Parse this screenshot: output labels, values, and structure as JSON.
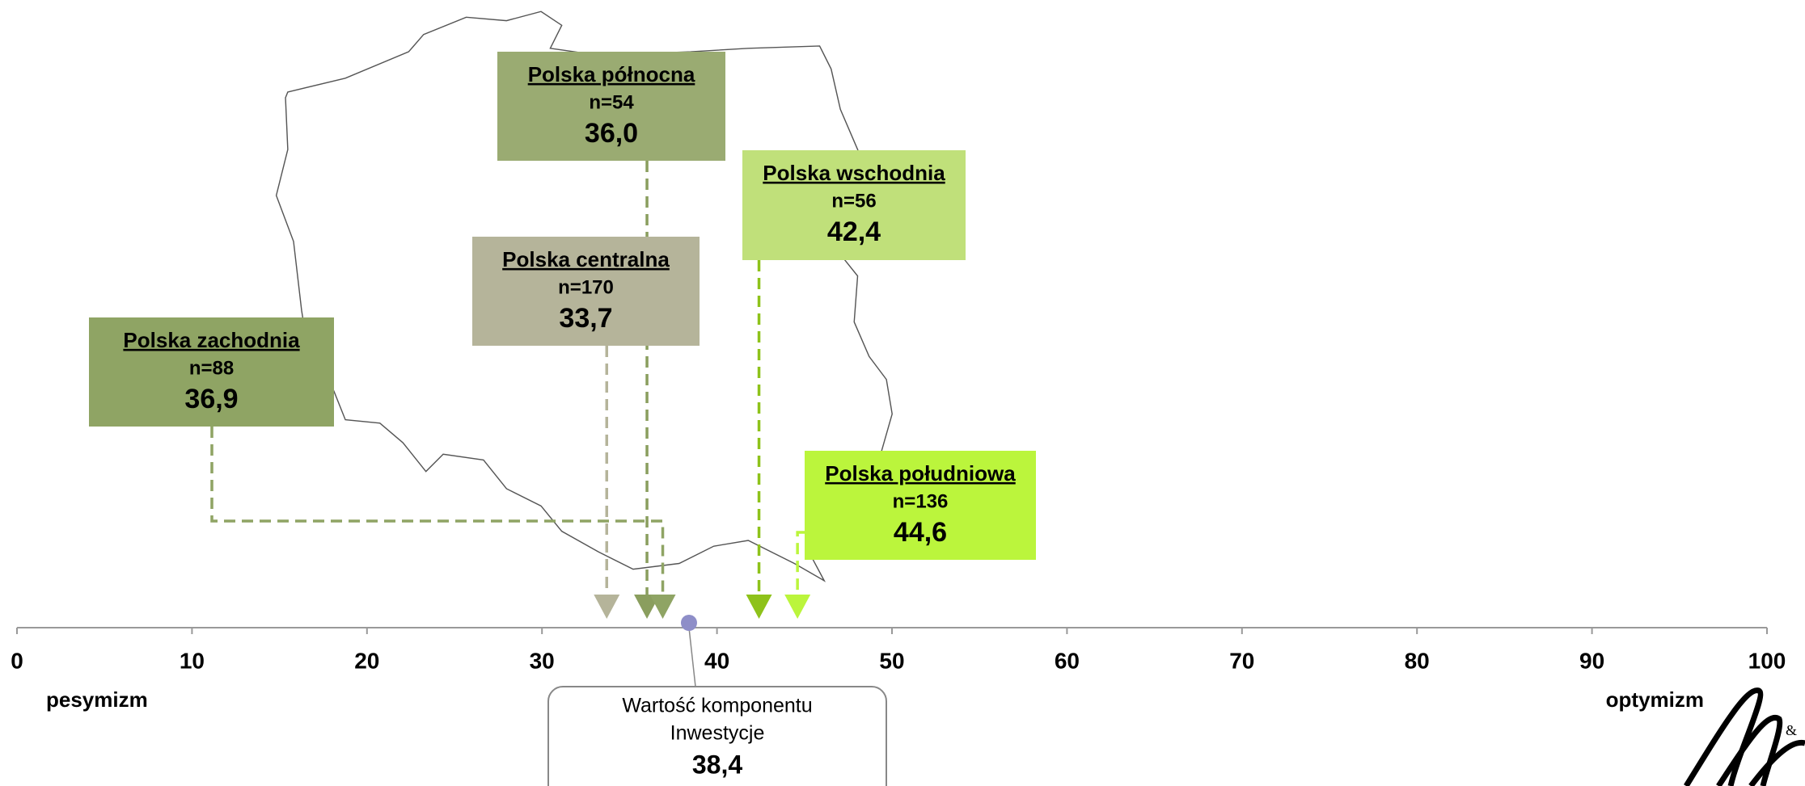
{
  "chart_data": {
    "type": "marker-scale",
    "xlim": [
      0,
      100
    ],
    "xticks": [
      0,
      10,
      20,
      30,
      40,
      50,
      60,
      70,
      80,
      90,
      100
    ],
    "left_label": "pesymizm",
    "right_label": "optymizm",
    "regions": [
      {
        "name": "Polska północna",
        "n": "n=54",
        "value": 36.0,
        "value_label": "36,0",
        "color": "#9aab72",
        "marker_color": "#8a9e5e"
      },
      {
        "name": "Polska wschodnia",
        "n": "n=56",
        "value": 42.4,
        "value_label": "42,4",
        "color": "#c0e07a",
        "marker_color": "#8ec21a"
      },
      {
        "name": "Polska centralna",
        "n": "n=170",
        "value": 33.7,
        "value_label": "33,7",
        "color": "#b5b49a",
        "marker_color": "#b5b49a"
      },
      {
        "name": "Polska zachodnia",
        "n": "n=88",
        "value": 36.9,
        "value_label": "36,9",
        "color": "#8fa464",
        "marker_color": "#8fa464"
      },
      {
        "name": "Polska południowa",
        "n": "n=136",
        "value": 44.6,
        "value_label": "44,6",
        "color": "#bbf53c",
        "marker_color": "#bbf53c"
      }
    ],
    "overall": {
      "label": "Wartość komponentu",
      "label2": "Inwestycje",
      "value": 38.4,
      "value_label": "38,4",
      "color": "#8e8ec8"
    }
  }
}
